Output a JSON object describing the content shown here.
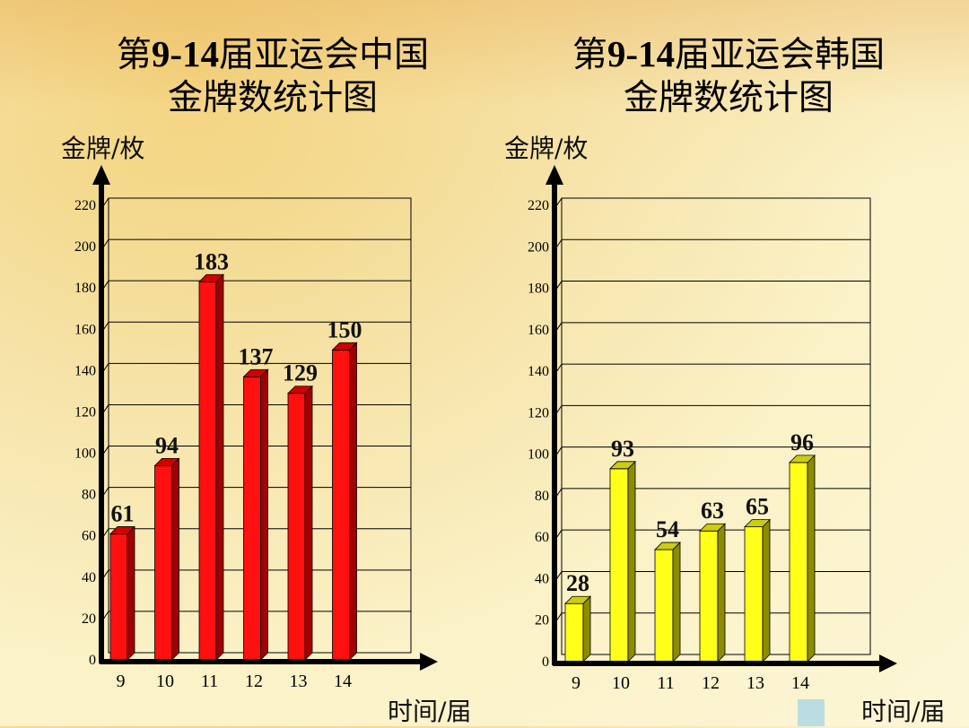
{
  "chart_data": [
    {
      "type": "bar",
      "title_line1_prefix": "第",
      "title_line1_range": "9-14",
      "title_line1_suffix": "届亚运会中国",
      "title_line2": "金牌数统计图",
      "ylabel": "金牌/枚",
      "xlabel": "时间/届",
      "categories": [
        "9",
        "10",
        "11",
        "12",
        "13",
        "14"
      ],
      "values": [
        61,
        94,
        183,
        137,
        129,
        150
      ],
      "yticks": [
        0,
        20,
        40,
        60,
        80,
        100,
        120,
        140,
        160,
        180,
        200,
        220
      ],
      "ylim": [
        0,
        220
      ],
      "grid": true,
      "bar_color": "#ff1010",
      "bar_side_color": "#a00000",
      "bar_top_color": "#d00000"
    },
    {
      "type": "bar",
      "title_line1_prefix": "第",
      "title_line1_range": "9-14",
      "title_line1_suffix": "届亚运会韩国",
      "title_line2": "金牌数统计图",
      "ylabel": "金牌/枚",
      "xlabel": "时间/届",
      "categories": [
        "9",
        "10",
        "11",
        "12",
        "13",
        "14"
      ],
      "values": [
        28,
        93,
        54,
        63,
        65,
        96
      ],
      "yticks": [
        0,
        20,
        40,
        60,
        80,
        100,
        120,
        140,
        160,
        180,
        200,
        220
      ],
      "ylim": [
        0,
        220
      ],
      "grid": true,
      "bar_color": "#ffff1a",
      "bar_side_color": "#8c8c00",
      "bar_top_color": "#cccc10"
    }
  ],
  "legend_swatch_color": "#b9dde3"
}
